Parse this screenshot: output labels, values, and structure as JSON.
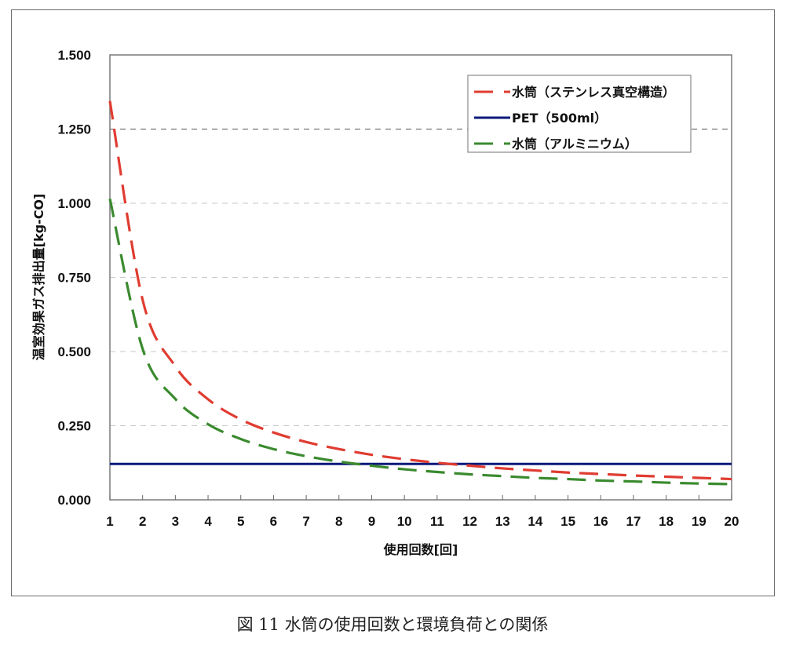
{
  "caption": "図 11 水筒の使用回数と環境負荷との関係",
  "chart_data": {
    "type": "line",
    "title": "",
    "xlabel": "使用回数[回]",
    "ylabel": "温室効果ガス排出量[kg-CO]",
    "x": [
      1,
      2,
      3,
      4,
      5,
      6,
      7,
      8,
      9,
      10,
      11,
      12,
      13,
      14,
      15,
      16,
      17,
      18,
      19,
      20
    ],
    "x_tick_labels": [
      "1",
      "2",
      "3",
      "4",
      "5",
      "6",
      "7",
      "8",
      "9",
      "10",
      "11",
      "12",
      "13",
      "14",
      "15",
      "16",
      "17",
      "18",
      "19",
      "20"
    ],
    "y_tick_labels": [
      "0.000",
      "0.250",
      "0.500",
      "0.750",
      "1.000",
      "1.250",
      "1.500"
    ],
    "ylim": [
      0,
      1.5
    ],
    "y_ticks": [
      0,
      0.25,
      0.5,
      0.75,
      1.0,
      1.25,
      1.5
    ],
    "grid": "horizontal dashed",
    "legend_position": "upper right (inside plot)",
    "series": [
      {
        "name": "水筒(ステンレス真空構造)",
        "color": "#e03c31",
        "style": "dashed",
        "values": [
          1.345,
          0.674,
          0.45,
          0.339,
          0.271,
          0.227,
          0.195,
          0.171,
          0.152,
          0.137,
          0.125,
          0.115,
          0.106,
          0.099,
          0.092,
          0.087,
          0.082,
          0.078,
          0.074,
          0.07
        ]
      },
      {
        "name": "PET(500ml)",
        "color": "#0c1a7a",
        "style": "solid",
        "values": [
          0.121,
          0.121,
          0.121,
          0.121,
          0.121,
          0.121,
          0.121,
          0.121,
          0.121,
          0.121,
          0.121,
          0.121,
          0.121,
          0.121,
          0.121,
          0.121,
          0.121,
          0.121,
          0.121,
          0.121
        ]
      },
      {
        "name": "水筒(アルミニウム)",
        "color": "#3a8a2e",
        "style": "dashed",
        "values": [
          1.015,
          0.509,
          0.34,
          0.255,
          0.205,
          0.171,
          0.147,
          0.129,
          0.115,
          0.103,
          0.094,
          0.086,
          0.08,
          0.074,
          0.07,
          0.065,
          0.062,
          0.058,
          0.055,
          0.053
        ]
      }
    ]
  },
  "legend": {
    "items": [
      {
        "label": "水筒（ステンレス真空構造）",
        "color": "#e03c31",
        "style": "dashed"
      },
      {
        "label": "PET（500ml）",
        "color": "#0c1a7a",
        "style": "solid"
      },
      {
        "label": "水筒（アルミニウム）",
        "color": "#3a8a2e",
        "style": "dashed"
      }
    ]
  },
  "axes": {
    "x_title": "使用回数[回]",
    "y_title": "温室効果ガス排出量[kg-CO]"
  }
}
